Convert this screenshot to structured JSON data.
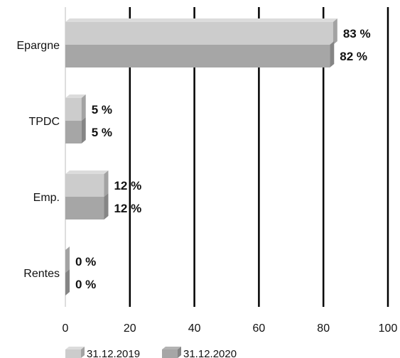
{
  "chart_data": {
    "type": "bar",
    "orientation": "horizontal",
    "categories": [
      "Epargne",
      "TPDC",
      "Emp.",
      "Rentes"
    ],
    "series": [
      {
        "name": "31.12.2019",
        "values": [
          83,
          5,
          12,
          0
        ],
        "color": "#cccccc"
      },
      {
        "name": "31.12.2020",
        "values": [
          82,
          5,
          12,
          0
        ],
        "color": "#a6a6a6"
      }
    ],
    "value_labels": [
      [
        "83 %",
        "5 %",
        "12 %",
        "0 %"
      ],
      [
        "82 %",
        "5 %",
        "12 %",
        "0 %"
      ]
    ],
    "xlim": [
      0,
      100
    ],
    "xticks": [
      0,
      20,
      40,
      60,
      80,
      100
    ],
    "xtick_labels": [
      "0",
      "20",
      "40",
      "60",
      "80",
      "100"
    ],
    "grid": "vertical",
    "legend_position": "bottom-left",
    "title": "",
    "xlabel": "",
    "ylabel": ""
  }
}
